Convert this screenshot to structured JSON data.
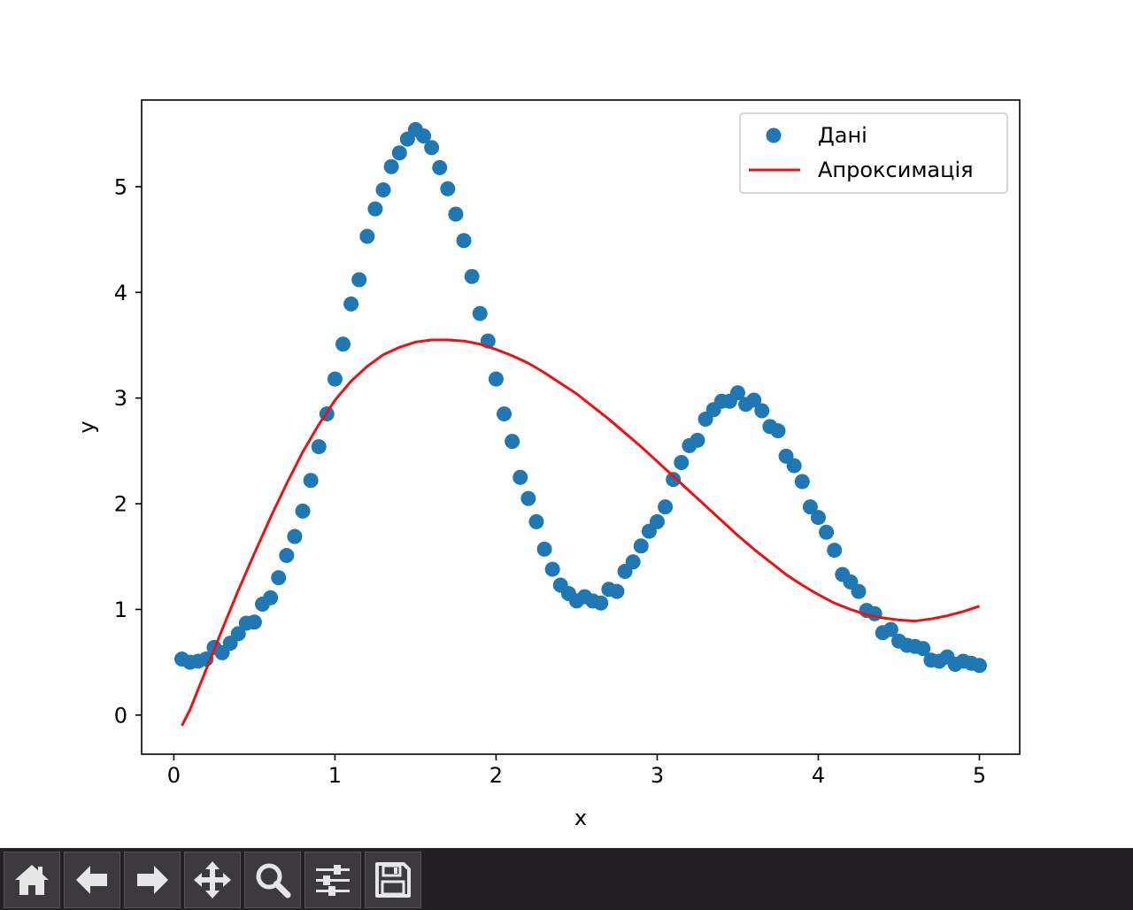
{
  "chart_data": {
    "type": "scatter",
    "xlabel": "x",
    "ylabel": "y",
    "xlim": [
      -0.2,
      5.25
    ],
    "ylim": [
      -0.37,
      5.82
    ],
    "xticks": [
      0,
      1,
      2,
      3,
      4,
      5
    ],
    "yticks": [
      0,
      1,
      2,
      3,
      4,
      5
    ],
    "grid": false,
    "legend_position": "top-right",
    "series": [
      {
        "name": "Дані",
        "kind": "scatter",
        "color": "#1f77b4",
        "points": [
          [
            0.05,
            0.53
          ],
          [
            0.1,
            0.5
          ],
          [
            0.15,
            0.51
          ],
          [
            0.2,
            0.53
          ],
          [
            0.25,
            0.64
          ],
          [
            0.3,
            0.59
          ],
          [
            0.35,
            0.68
          ],
          [
            0.4,
            0.77
          ],
          [
            0.45,
            0.87
          ],
          [
            0.5,
            0.88
          ],
          [
            0.55,
            1.05
          ],
          [
            0.6,
            1.11
          ],
          [
            0.65,
            1.3
          ],
          [
            0.7,
            1.51
          ],
          [
            0.75,
            1.69
          ],
          [
            0.8,
            1.93
          ],
          [
            0.85,
            2.22
          ],
          [
            0.9,
            2.54
          ],
          [
            0.95,
            2.85
          ],
          [
            1.0,
            3.18
          ],
          [
            1.05,
            3.51
          ],
          [
            1.1,
            3.89
          ],
          [
            1.15,
            4.12
          ],
          [
            1.2,
            4.53
          ],
          [
            1.25,
            4.79
          ],
          [
            1.3,
            4.97
          ],
          [
            1.35,
            5.19
          ],
          [
            1.4,
            5.32
          ],
          [
            1.45,
            5.45
          ],
          [
            1.5,
            5.54
          ],
          [
            1.55,
            5.48
          ],
          [
            1.6,
            5.37
          ],
          [
            1.65,
            5.18
          ],
          [
            1.7,
            4.98
          ],
          [
            1.75,
            4.74
          ],
          [
            1.8,
            4.49
          ],
          [
            1.85,
            4.15
          ],
          [
            1.9,
            3.8
          ],
          [
            1.95,
            3.54
          ],
          [
            2.0,
            3.18
          ],
          [
            2.05,
            2.85
          ],
          [
            2.1,
            2.59
          ],
          [
            2.15,
            2.25
          ],
          [
            2.2,
            2.05
          ],
          [
            2.25,
            1.83
          ],
          [
            2.3,
            1.57
          ],
          [
            2.35,
            1.38
          ],
          [
            2.4,
            1.23
          ],
          [
            2.45,
            1.15
          ],
          [
            2.5,
            1.08
          ],
          [
            2.55,
            1.12
          ],
          [
            2.6,
            1.08
          ],
          [
            2.65,
            1.06
          ],
          [
            2.7,
            1.19
          ],
          [
            2.75,
            1.17
          ],
          [
            2.8,
            1.36
          ],
          [
            2.85,
            1.45
          ],
          [
            2.9,
            1.6
          ],
          [
            2.95,
            1.74
          ],
          [
            3.0,
            1.83
          ],
          [
            3.05,
            1.97
          ],
          [
            3.1,
            2.23
          ],
          [
            3.15,
            2.39
          ],
          [
            3.2,
            2.55
          ],
          [
            3.25,
            2.6
          ],
          [
            3.3,
            2.8
          ],
          [
            3.35,
            2.89
          ],
          [
            3.4,
            2.97
          ],
          [
            3.45,
            2.97
          ],
          [
            3.5,
            3.05
          ],
          [
            3.55,
            2.94
          ],
          [
            3.6,
            2.98
          ],
          [
            3.65,
            2.88
          ],
          [
            3.7,
            2.73
          ],
          [
            3.75,
            2.69
          ],
          [
            3.8,
            2.45
          ],
          [
            3.85,
            2.36
          ],
          [
            3.9,
            2.21
          ],
          [
            3.95,
            1.97
          ],
          [
            4.0,
            1.87
          ],
          [
            4.05,
            1.73
          ],
          [
            4.1,
            1.56
          ],
          [
            4.15,
            1.33
          ],
          [
            4.2,
            1.26
          ],
          [
            4.25,
            1.17
          ],
          [
            4.3,
            0.99
          ],
          [
            4.35,
            0.96
          ],
          [
            4.4,
            0.78
          ],
          [
            4.45,
            0.81
          ],
          [
            4.5,
            0.7
          ],
          [
            4.55,
            0.66
          ],
          [
            4.6,
            0.65
          ],
          [
            4.65,
            0.63
          ],
          [
            4.7,
            0.52
          ],
          [
            4.75,
            0.51
          ],
          [
            4.8,
            0.55
          ],
          [
            4.85,
            0.48
          ],
          [
            4.9,
            0.51
          ],
          [
            4.95,
            0.49
          ],
          [
            5.0,
            0.47
          ]
        ]
      },
      {
        "name": "Апроксимація",
        "kind": "line",
        "color": "#ee1111",
        "points": [
          [
            0.05,
            -0.1
          ],
          [
            0.1,
            0.05
          ],
          [
            0.15,
            0.24
          ],
          [
            0.2,
            0.43
          ],
          [
            0.3,
            0.81
          ],
          [
            0.4,
            1.18
          ],
          [
            0.5,
            1.53
          ],
          [
            0.6,
            1.87
          ],
          [
            0.7,
            2.19
          ],
          [
            0.8,
            2.49
          ],
          [
            0.9,
            2.75
          ],
          [
            1.0,
            2.98
          ],
          [
            1.1,
            3.16
          ],
          [
            1.2,
            3.3
          ],
          [
            1.3,
            3.41
          ],
          [
            1.4,
            3.48
          ],
          [
            1.5,
            3.53
          ],
          [
            1.6,
            3.55
          ],
          [
            1.7,
            3.55
          ],
          [
            1.8,
            3.54
          ],
          [
            1.9,
            3.51
          ],
          [
            2.0,
            3.46
          ],
          [
            2.1,
            3.4
          ],
          [
            2.2,
            3.33
          ],
          [
            2.3,
            3.24
          ],
          [
            2.4,
            3.14
          ],
          [
            2.5,
            3.04
          ],
          [
            2.6,
            2.92
          ],
          [
            2.7,
            2.8
          ],
          [
            2.8,
            2.67
          ],
          [
            2.9,
            2.54
          ],
          [
            3.0,
            2.4
          ],
          [
            3.1,
            2.26
          ],
          [
            3.2,
            2.12
          ],
          [
            3.3,
            1.98
          ],
          [
            3.4,
            1.84
          ],
          [
            3.5,
            1.7
          ],
          [
            3.6,
            1.57
          ],
          [
            3.7,
            1.45
          ],
          [
            3.8,
            1.33
          ],
          [
            3.9,
            1.23
          ],
          [
            4.0,
            1.14
          ],
          [
            4.1,
            1.06
          ],
          [
            4.2,
            1.0
          ],
          [
            4.3,
            0.95
          ],
          [
            4.4,
            0.92
          ],
          [
            4.5,
            0.9
          ],
          [
            4.6,
            0.89
          ],
          [
            4.7,
            0.91
          ],
          [
            4.8,
            0.94
          ],
          [
            4.9,
            0.98
          ],
          [
            5.0,
            1.03
          ]
        ]
      }
    ]
  },
  "toolbar": {
    "buttons": [
      {
        "name": "home-button",
        "icon": "home-icon"
      },
      {
        "name": "back-button",
        "icon": "arrow-left-icon"
      },
      {
        "name": "forward-button",
        "icon": "arrow-right-icon"
      },
      {
        "name": "pan-button",
        "icon": "move-icon"
      },
      {
        "name": "zoom-button",
        "icon": "magnifier-icon"
      },
      {
        "name": "configure-subplots-button",
        "icon": "sliders-icon"
      },
      {
        "name": "save-button",
        "icon": "floppy-disk-icon"
      }
    ],
    "icon_color": "#e6e6e6",
    "background": "#231f24"
  }
}
